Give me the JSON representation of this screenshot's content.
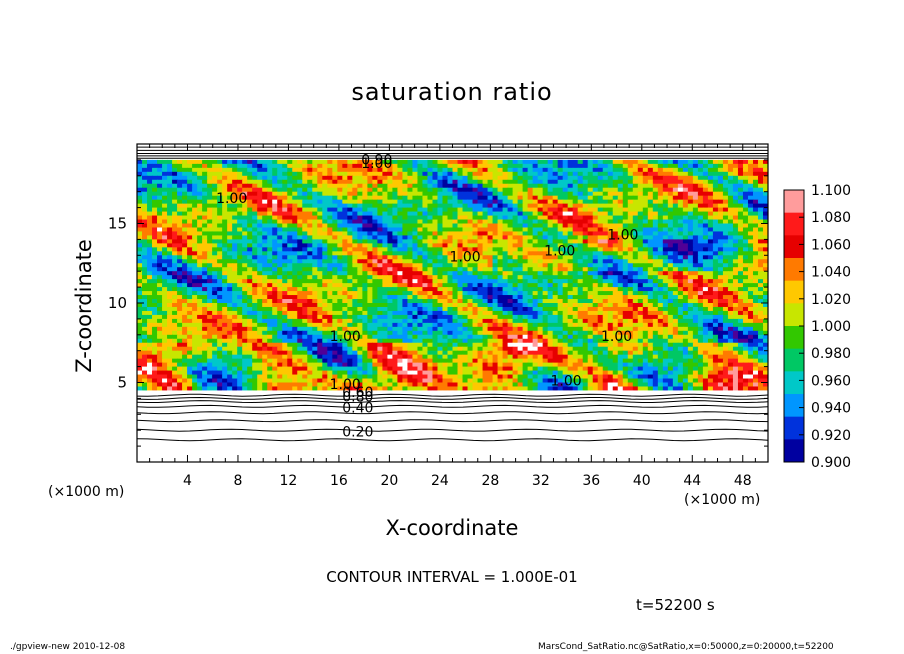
{
  "chart_data": {
    "type": "heatmap",
    "title": "saturation ratio",
    "xlabel": "X-coordinate",
    "ylabel": "Z-coordinate",
    "x_unit": "(×1000 m)",
    "z_unit": "(×1000 m)",
    "xlim": [
      0,
      50
    ],
    "ylim": [
      0,
      20
    ],
    "x_ticks": [
      4,
      8,
      12,
      16,
      20,
      24,
      28,
      32,
      36,
      40,
      44,
      48
    ],
    "y_ticks": [
      5,
      10,
      15
    ],
    "colorbar": {
      "ticks": [
        "1.100",
        "1.080",
        "1.060",
        "1.040",
        "1.020",
        "1.000",
        "0.980",
        "0.960",
        "0.940",
        "0.920",
        "0.900"
      ],
      "colors": [
        "#ff9c9c",
        "#ff1a1a",
        "#e60000",
        "#ff7a00",
        "#ffc800",
        "#c8e600",
        "#32c800",
        "#00c864",
        "#00c8c8",
        "#0096ff",
        "#0032dc",
        "#0000a0",
        "#500096"
      ]
    },
    "contour_labels": [
      {
        "text": "0.90",
        "x": 19,
        "z": 18.7
      },
      {
        "text": "1.00",
        "x": 19,
        "z": 18.5
      },
      {
        "text": "1.00",
        "x": 7.5,
        "z": 16.3
      },
      {
        "text": "1.00",
        "x": 26,
        "z": 12.6
      },
      {
        "text": "1.00",
        "x": 33.5,
        "z": 13.0
      },
      {
        "text": "1.00",
        "x": 38.5,
        "z": 14.0
      },
      {
        "text": "1.00",
        "x": 16.5,
        "z": 7.6
      },
      {
        "text": "1.00",
        "x": 38,
        "z": 7.6
      },
      {
        "text": "1.00",
        "x": 34,
        "z": 4.8
      },
      {
        "text": "1.00",
        "x": 16.5,
        "z": 4.6
      },
      {
        "text": "0.60",
        "x": 17.5,
        "z": 4.1
      },
      {
        "text": "0.80",
        "x": 17.5,
        "z": 3.8
      },
      {
        "text": "0.40",
        "x": 17.5,
        "z": 3.1
      },
      {
        "text": "0.20",
        "x": 17.5,
        "z": 1.6
      }
    ],
    "contour_interval": "CONTOUR INTERVAL = 1.000E-01",
    "time": "t=52200 s"
  },
  "footer": {
    "left": "./gpview-new 2010-12-08",
    "right": "MarsCond_SatRatio.nc@SatRatio,x=0:50000,z=0:20000,t=52200"
  }
}
